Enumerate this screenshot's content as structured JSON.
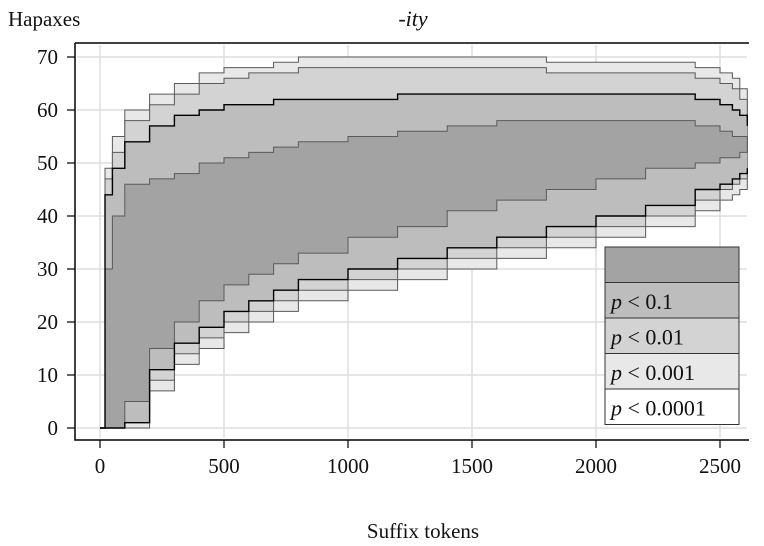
{
  "chart_data": {
    "type": "area",
    "title": "-ity",
    "ylabel": "Hapaxes",
    "xlabel": "Suffix tokens",
    "xlim": [
      0,
      2650
    ],
    "ylim": [
      -0.5,
      71
    ],
    "x_ticks": [
      "0",
      "500",
      "1000",
      "1500",
      "2000",
      "2500"
    ],
    "y_ticks": [
      "0",
      "10",
      "20",
      "30",
      "40",
      "50",
      "60",
      "70"
    ],
    "grid": true,
    "legend_position": "bottom-right",
    "legend": [
      {
        "label": "",
        "color": "#a3a3a3"
      },
      {
        "p": "p",
        "rest": " < 0.1",
        "color": "#bdbdbd"
      },
      {
        "p": "p",
        "rest": " < 0.01",
        "color": "#d3d3d3"
      },
      {
        "p": "p",
        "rest": " < 0.001",
        "color": "#e8e8e8"
      },
      {
        "p": "p",
        "rest": " < 0.0001",
        "color": "#ffffff"
      }
    ],
    "x": [
      0,
      20,
      50,
      100,
      200,
      300,
      400,
      500,
      600,
      700,
      800,
      1000,
      1200,
      1400,
      1600,
      1800,
      2000,
      2200,
      2400,
      2500,
      2550,
      2580,
      2610
    ],
    "series": [
      {
        "level": "p < 0.0001",
        "fill": "#e8e8e8",
        "upper": [
          0,
          49,
          55,
          60,
          63,
          65,
          67,
          68,
          68,
          69,
          70,
          70,
          70,
          70,
          70,
          69,
          69,
          69,
          68,
          67,
          66,
          64,
          60
        ],
        "lower": [
          0,
          0,
          0,
          0,
          7,
          12,
          15,
          18,
          20,
          22,
          24,
          26,
          28,
          30,
          32,
          34,
          36,
          38,
          41,
          43,
          44,
          45,
          48
        ]
      },
      {
        "level": "p < 0.001",
        "fill": "#d3d3d3",
        "upper": [
          0,
          47,
          52,
          58,
          61,
          63,
          65,
          66,
          67,
          67,
          68,
          68,
          68,
          68,
          68,
          67,
          67,
          67,
          66,
          65,
          64,
          62,
          59
        ],
        "lower": [
          0,
          0,
          0,
          3,
          9,
          14,
          17,
          20,
          22,
          24,
          26,
          28,
          30,
          32,
          34,
          36,
          38,
          40,
          43,
          45,
          46,
          47,
          50
        ]
      },
      {
        "level": "p < 0.01",
        "fill": "#bdbdbd",
        "upper": [
          0,
          44,
          49,
          54,
          57,
          59,
          60,
          61,
          61,
          62,
          62,
          62,
          63,
          63,
          63,
          63,
          63,
          63,
          62,
          61,
          60,
          59,
          57
        ]
      },
      {
        "level": "p < 0.1",
        "fill": "#a3a3a3",
        "upper": [
          0,
          30,
          40,
          46,
          47,
          48,
          50,
          51,
          52,
          53,
          54,
          55,
          56,
          57,
          58,
          58,
          58,
          58,
          57,
          56,
          55,
          55,
          54
        ],
        "lower": [
          0,
          0,
          0,
          5,
          15,
          20,
          24,
          27,
          29,
          31,
          33,
          36,
          38,
          41,
          43,
          45,
          47,
          49,
          50,
          51,
          51,
          52,
          52
        ]
      }
    ],
    "boundary_lines": {
      "p < 0.01": {
        "upper": [
          0,
          44,
          49,
          54,
          57,
          59,
          60,
          61,
          61,
          62,
          62,
          62,
          63,
          63,
          63,
          63,
          63,
          63,
          62,
          61,
          60,
          59,
          57
        ],
        "lower": [
          0,
          0,
          0,
          1,
          11,
          16,
          19,
          22,
          24,
          26,
          28,
          30,
          32,
          34,
          36,
          38,
          40,
          42,
          45,
          46,
          47,
          48,
          49
        ]
      }
    }
  }
}
